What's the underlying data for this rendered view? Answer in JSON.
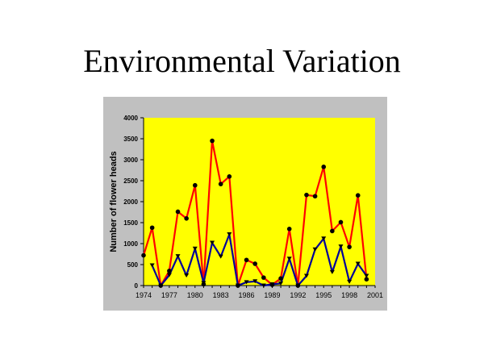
{
  "slide": {
    "title": "Environmental Variation"
  },
  "colors": {
    "frame": "#c0c0c0",
    "plot_background": "#ffff00",
    "series_red": "#ff0000",
    "series_blue": "#000099",
    "marker": "#000000"
  },
  "chart_data": {
    "type": "line",
    "title": "",
    "xlabel": "",
    "ylabel": "Number of flower heads",
    "xlim": [
      1974,
      2001
    ],
    "ylim": [
      0,
      4000
    ],
    "grid": false,
    "legend": "none",
    "x_ticks": [
      1974,
      1977,
      1980,
      1983,
      1986,
      1989,
      1992,
      1995,
      1998,
      2001
    ],
    "y_ticks": [
      0,
      500,
      1000,
      1500,
      2000,
      2500,
      3000,
      3500,
      4000
    ],
    "series": [
      {
        "name": "Series 1 (red, circles)",
        "color": "#ff0000",
        "marker": "circle",
        "x": [
          1974,
          1975,
          1976,
          1977,
          1978,
          1979,
          1980,
          1981,
          1982,
          1983,
          1984,
          1985,
          1986,
          1987,
          1988,
          1989,
          1990,
          1991,
          1992,
          1993,
          1994,
          1995,
          1996,
          1997,
          1998,
          1999,
          2000
        ],
        "values": [
          720,
          1380,
          0,
          350,
          1760,
          1600,
          2390,
          30,
          3450,
          2420,
          2600,
          0,
          610,
          520,
          190,
          20,
          170,
          1350,
          0,
          2160,
          2130,
          2830,
          1300,
          1510,
          920,
          2150,
          150
        ]
      },
      {
        "name": "Series 2 (blue, triangles)",
        "color": "#000099",
        "marker": "triangle-down",
        "x": [
          1975,
          1976,
          1977,
          1978,
          1979,
          1980,
          1981,
          1982,
          1983,
          1984,
          1985,
          1986,
          1987,
          1988,
          1989,
          1990,
          1991,
          1992,
          1993,
          1994,
          1995,
          1996,
          1997,
          1998,
          1999,
          2000
        ],
        "values": [
          480,
          0,
          250,
          700,
          240,
          880,
          60,
          1020,
          690,
          1220,
          0,
          80,
          100,
          0,
          30,
          50,
          640,
          0,
          230,
          860,
          1120,
          320,
          930,
          90,
          520,
          230
        ]
      }
    ]
  }
}
